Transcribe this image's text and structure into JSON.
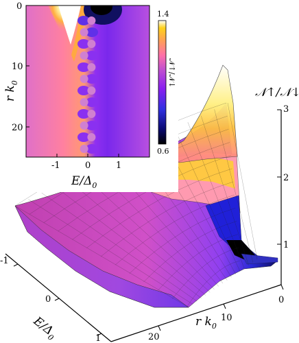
{
  "chart_data": [
    {
      "type": "heatmap",
      "panel": "inset",
      "xlabel": "E/Δ0",
      "ylabel": "r k0",
      "colorbar_label": "𝒩↑/𝒩↓",
      "xlim": [
        -2,
        2
      ],
      "ylim": [
        0,
        25
      ],
      "x_ticks": [
        "-1",
        "0",
        "1"
      ],
      "y_ticks": [
        "0",
        "10",
        "20"
      ],
      "colorbar_range": [
        0.6,
        1.4
      ],
      "colorbar_ticks": [
        "0.6",
        "1.4"
      ],
      "colormap": [
        "#000000",
        "#0a0a70",
        "#3030e0",
        "#8a20f0",
        "#c050d0",
        "#ff70a8",
        "#ffa055",
        "#ffd21a",
        "#ffffff"
      ]
    },
    {
      "type": "surface",
      "panel": "main",
      "zlabel": "𝒩↑/𝒩↓",
      "xlabel": "r k0",
      "ylabel": "E/Δ0",
      "z_ticks": [
        "1",
        "2",
        "3"
      ],
      "x_ticks": [
        "0",
        "10",
        "20"
      ],
      "y_ticks": [
        "-1",
        "0",
        "1"
      ],
      "zlim": [
        0.5,
        3
      ],
      "xlim": [
        0,
        25
      ],
      "ylim": [
        -1,
        1
      ]
    }
  ],
  "text": {
    "inset_y_tick_0": "0",
    "inset_y_tick_10": "10",
    "inset_y_tick_20": "20",
    "inset_x_tick_m1": "-1",
    "inset_x_tick_0": "0",
    "inset_x_tick_1": "1",
    "inset_ylabel": "r k",
    "inset_ylabel_sub": "0",
    "inset_xlabel_E": "E/Δ",
    "inset_xlabel_sub": "0",
    "colorbar_top": "1.4",
    "colorbar_bottom": "0.6",
    "colorbar_label": "𝒩↑/𝒩↓",
    "z_label": "𝒩↑/𝒩↓",
    "z_tick_3": "3",
    "z_tick_2": "2",
    "z_tick_1": "1",
    "r_tick_0": "0",
    "r_tick_10": "10",
    "r_tick_20": "20",
    "r_label": "r k",
    "r_label_sub": "0",
    "e_tick_m1": "-1",
    "e_tick_0": "0",
    "e_tick_1": "1",
    "e_label": "E/Δ",
    "e_label_sub": "0"
  }
}
